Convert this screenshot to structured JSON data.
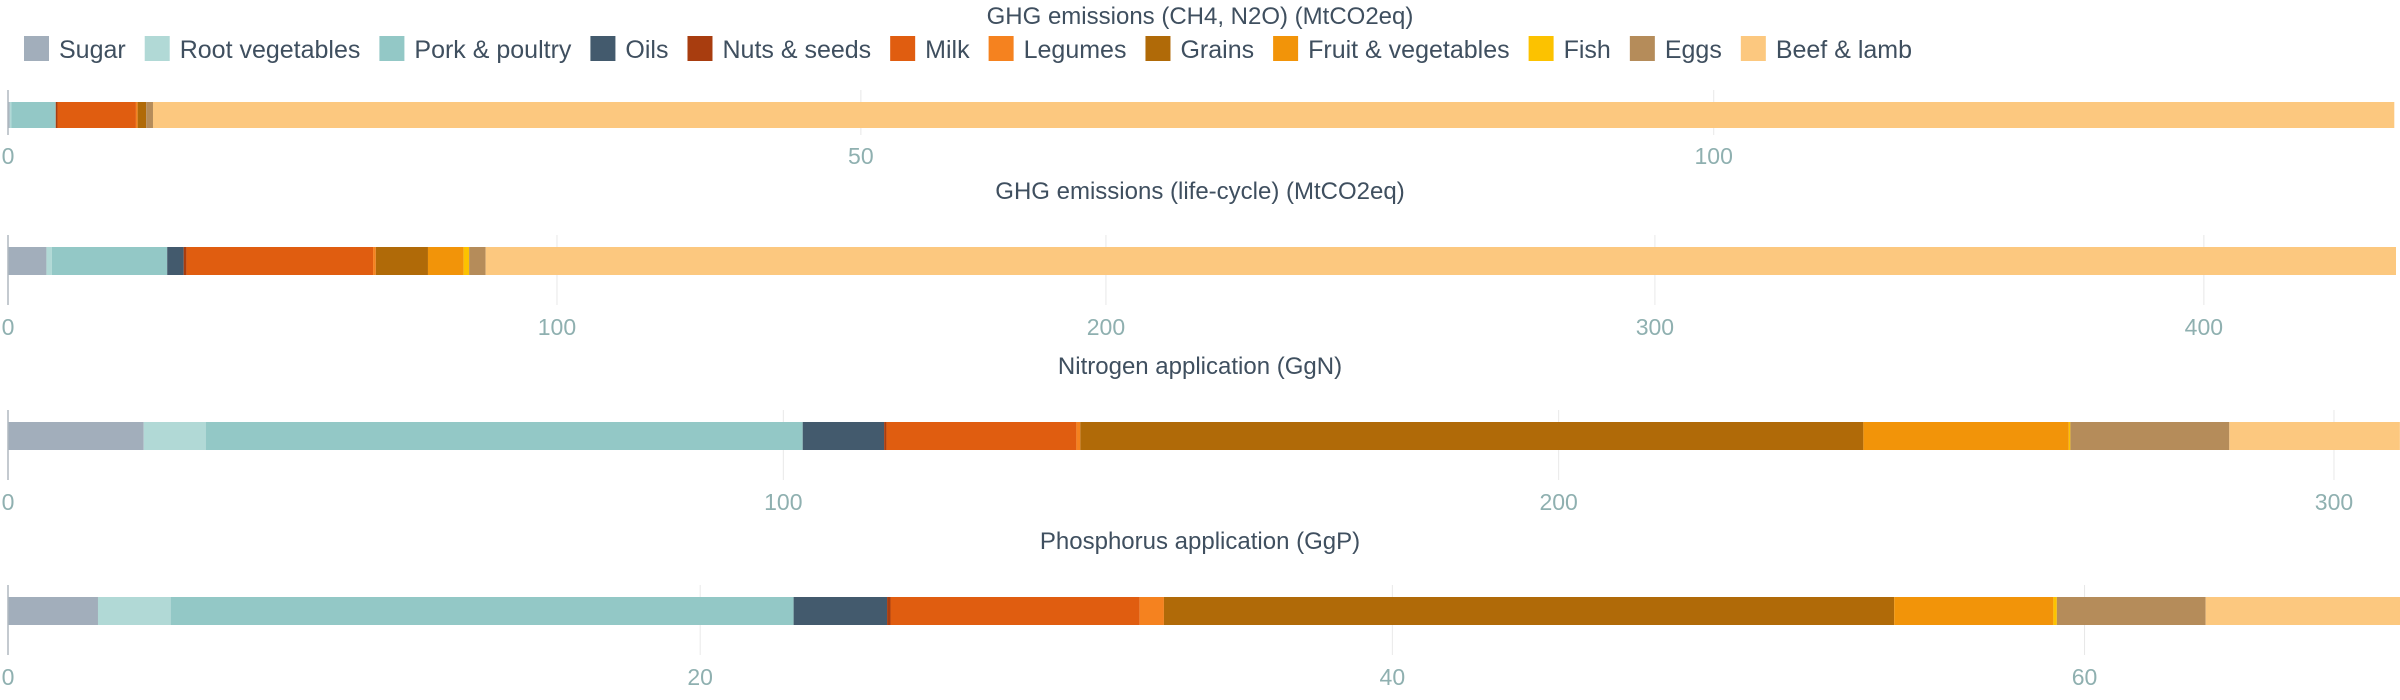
{
  "colors": {
    "Sugar": "#a2aebb",
    "Root vegetables": "#b1d9d6",
    "Pork & poultry": "#93c8c6",
    "Oils": "#435a6d",
    "Nuts & seeds": "#a83d0f",
    "Milk": "#e05d10",
    "Legumes": "#f5821f",
    "Grains": "#b06a08",
    "Fruit & vegetables": "#f29409",
    "Fish": "#fcc200",
    "Eggs": "#b58c5a",
    "Beef & lamb": "#fcc87f"
  },
  "chart_data": {
    "type": "bar",
    "orientation": "horizontal",
    "stacked": true,
    "legend": [
      "Sugar",
      "Root vegetables",
      "Pork & poultry",
      "Oils",
      "Nuts & seeds",
      "Milk",
      "Legumes",
      "Grains",
      "Fruit & vegetables",
      "Fish",
      "Eggs",
      "Beef & lamb"
    ],
    "legend_position": "top-left",
    "grid": true,
    "panels": [
      {
        "title": "GHG emissions (CH4, N2O) (MtCO2eq)",
        "xlim": [
          0,
          140
        ],
        "ticks": [
          0,
          50,
          100
        ],
        "values": [
          0.1,
          0.1,
          2.6,
          0,
          0.1,
          4.6,
          0.1,
          0.5,
          0,
          0,
          0.4,
          131.4
        ]
      },
      {
        "title": "GHG emissions (life-cycle) (MtCO2eq)",
        "xlim": [
          0,
          435
        ],
        "ticks": [
          0,
          100,
          200,
          300,
          400
        ],
        "values": [
          7,
          1,
          21,
          3,
          0.5,
          34,
          0.5,
          9.5,
          6.5,
          1,
          3,
          348
        ]
      },
      {
        "title": "Nitrogen application (GgN)",
        "xlim": [
          0,
          308
        ],
        "ticks": [
          0,
          100,
          200,
          300
        ],
        "values": [
          17.5,
          8,
          77,
          10.5,
          0.3,
          24.5,
          0.5,
          101,
          26.5,
          0.2,
          20.5,
          22
        ]
      },
      {
        "title": "Phosphorus application (GgP)",
        "xlim": [
          0,
          69
        ],
        "ticks": [
          0,
          20,
          40,
          60
        ],
        "values": [
          2.6,
          2.1,
          18,
          2.7,
          0.1,
          7.2,
          0.7,
          21.1,
          4.6,
          0.1,
          4.3,
          5.7
        ]
      }
    ]
  }
}
